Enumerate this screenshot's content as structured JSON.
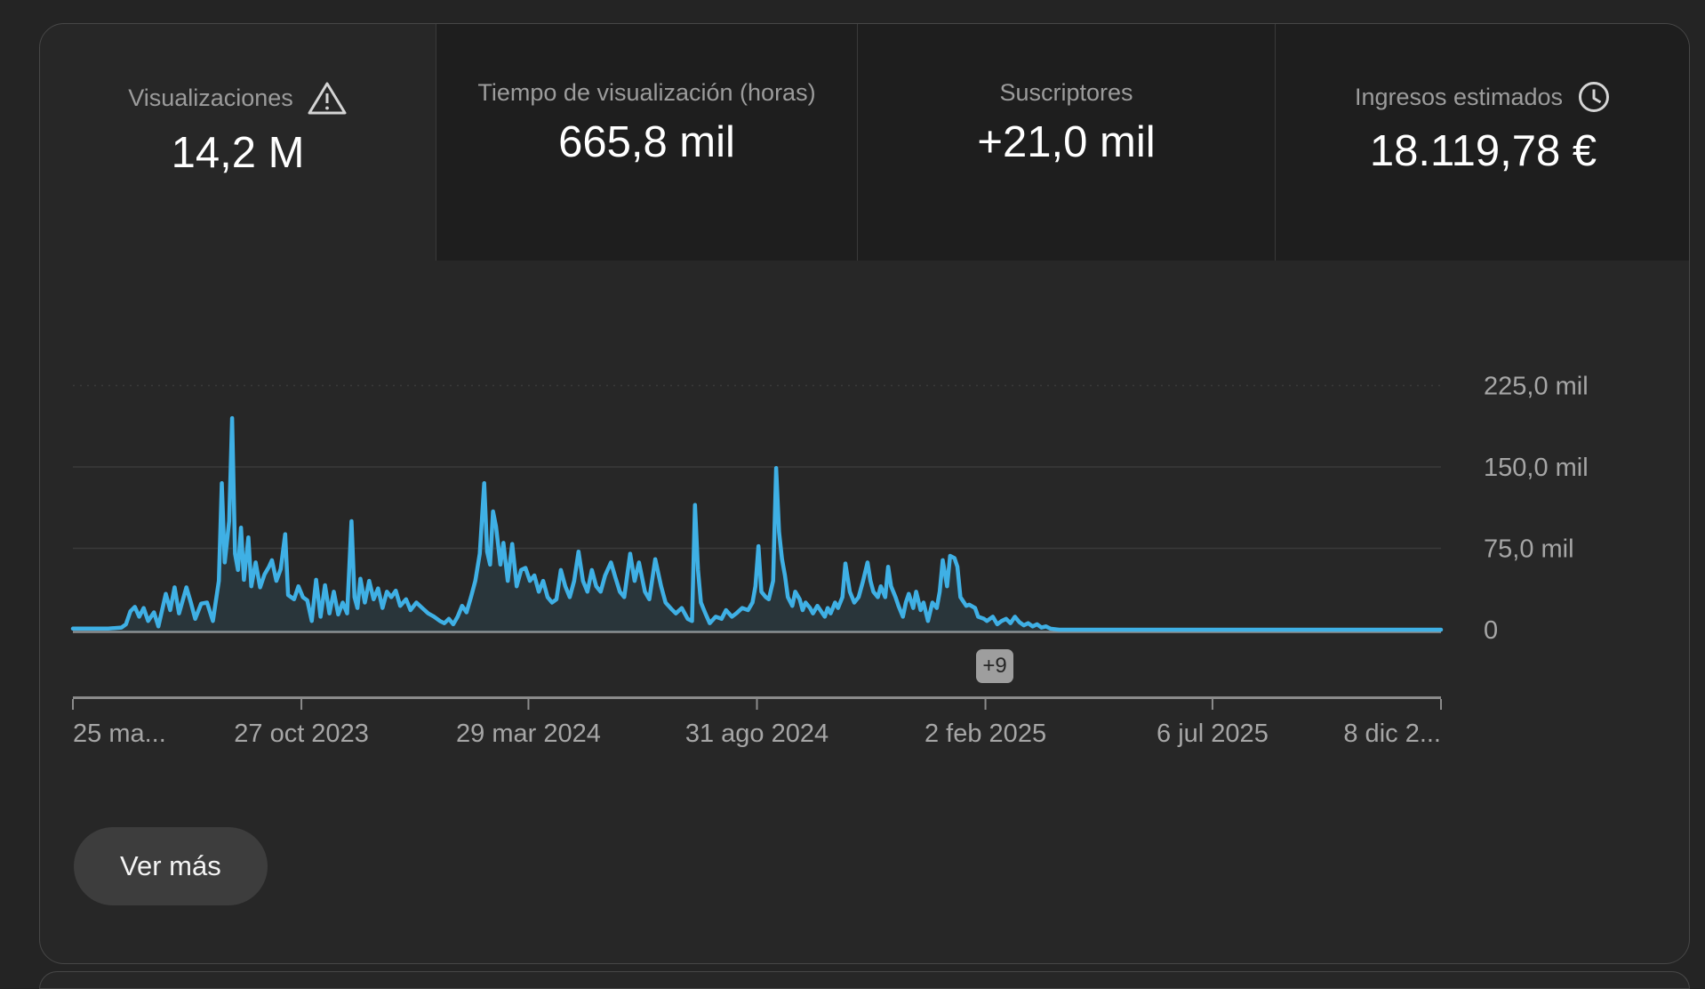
{
  "panel": {
    "see_more_label": "Ver más",
    "overflow_badge": "+9"
  },
  "metrics": [
    {
      "label": "Visualizaciones",
      "value": "14,2 M",
      "icon": "warning",
      "selected": true
    },
    {
      "label": "Tiempo de visualización (horas)",
      "value": "665,8 mil",
      "icon": "",
      "selected": false
    },
    {
      "label": "Suscriptores",
      "value": "+21,0 mil",
      "icon": "",
      "selected": false
    },
    {
      "label": "Ingresos estimados",
      "value": "18.119,78 €",
      "icon": "clock",
      "selected": false
    }
  ],
  "colors": {
    "accent_line": "#3fb0e5",
    "area_fill": "rgba(63,176,229,0.10)",
    "gridline": "#3a3a3a",
    "axis": "#8b8b8b",
    "zero_line": "#8f8f8f",
    "axis_text": "#a6a6a6",
    "page_bg": "#242424",
    "card_bg": "#272727",
    "tab_bg": "#1e1e1e"
  },
  "chart_data": {
    "type": "area",
    "title": "Visualizaciones por día",
    "xlabel": "",
    "ylabel": "Visualizaciones",
    "values_unit": "thousands of views (mil)",
    "grid": true,
    "legend_position": "none",
    "x_axis_start_day": 0,
    "x_axis_end_day": 928,
    "x_ticks": [
      {
        "day": 0,
        "label": "25 ma..."
      },
      {
        "day": 155,
        "label": "27 oct 2023"
      },
      {
        "day": 309,
        "label": "29 mar 2024"
      },
      {
        "day": 464,
        "label": "31 ago 2024"
      },
      {
        "day": 619,
        "label": "2 feb 2025"
      },
      {
        "day": 773,
        "label": "6 jul 2025"
      },
      {
        "day": 928,
        "label": "8 dic 2..."
      }
    ],
    "y_ticks": [
      {
        "value": 225,
        "label": "225,0 mil",
        "dashed": true
      },
      {
        "value": 150,
        "label": "150,0 mil",
        "dashed": false
      },
      {
        "value": 75,
        "label": "75,0 mil",
        "dashed": false
      },
      {
        "value": 0,
        "label": "0",
        "dashed": false
      }
    ],
    "ylim": [
      0,
      250
    ],
    "series": [
      {
        "name": "Visualizaciones",
        "points": [
          [
            0,
            1
          ],
          [
            11,
            1
          ],
          [
            24,
            1
          ],
          [
            33,
            2
          ],
          [
            36,
            5
          ],
          [
            39,
            17
          ],
          [
            42,
            21
          ],
          [
            45,
            12
          ],
          [
            48,
            20
          ],
          [
            51,
            8
          ],
          [
            55,
            16
          ],
          [
            58,
            3
          ],
          [
            63,
            33
          ],
          [
            66,
            18
          ],
          [
            69,
            39
          ],
          [
            72,
            15
          ],
          [
            77,
            39
          ],
          [
            80,
            25
          ],
          [
            83,
            10
          ],
          [
            87,
            24
          ],
          [
            91,
            25
          ],
          [
            95,
            8
          ],
          [
            99,
            45
          ],
          [
            101,
            135
          ],
          [
            103,
            62
          ],
          [
            106,
            100
          ],
          [
            108,
            195
          ],
          [
            110,
            70
          ],
          [
            112,
            55
          ],
          [
            114,
            94
          ],
          [
            116,
            46
          ],
          [
            119,
            85
          ],
          [
            121,
            40
          ],
          [
            124,
            62
          ],
          [
            127,
            39
          ],
          [
            130,
            51
          ],
          [
            133,
            58
          ],
          [
            135,
            64
          ],
          [
            138,
            45
          ],
          [
            141,
            56
          ],
          [
            144,
            88
          ],
          [
            146,
            32
          ],
          [
            150,
            28
          ],
          [
            153,
            40
          ],
          [
            156,
            30
          ],
          [
            159,
            27
          ],
          [
            162,
            8
          ],
          [
            165,
            46
          ],
          [
            168,
            12
          ],
          [
            171,
            41
          ],
          [
            174,
            15
          ],
          [
            177,
            35
          ],
          [
            180,
            14
          ],
          [
            183,
            25
          ],
          [
            186,
            15
          ],
          [
            189,
            100
          ],
          [
            191,
            30
          ],
          [
            193,
            20
          ],
          [
            195,
            47
          ],
          [
            198,
            25
          ],
          [
            201,
            45
          ],
          [
            204,
            28
          ],
          [
            207,
            38
          ],
          [
            210,
            20
          ],
          [
            213,
            35
          ],
          [
            216,
            30
          ],
          [
            219,
            36
          ],
          [
            222,
            22
          ],
          [
            226,
            28
          ],
          [
            229,
            18
          ],
          [
            233,
            25
          ],
          [
            237,
            20
          ],
          [
            241,
            15
          ],
          [
            245,
            12
          ],
          [
            249,
            8
          ],
          [
            252,
            6
          ],
          [
            255,
            10
          ],
          [
            258,
            5
          ],
          [
            261,
            12
          ],
          [
            264,
            22
          ],
          [
            267,
            16
          ],
          [
            270,
            30
          ],
          [
            273,
            45
          ],
          [
            276,
            70
          ],
          [
            279,
            135
          ],
          [
            281,
            72
          ],
          [
            283,
            60
          ],
          [
            285,
            109
          ],
          [
            287,
            95
          ],
          [
            290,
            60
          ],
          [
            292,
            80
          ],
          [
            295,
            45
          ],
          [
            298,
            79
          ],
          [
            301,
            40
          ],
          [
            304,
            55
          ],
          [
            307,
            57
          ],
          [
            310,
            45
          ],
          [
            313,
            50
          ],
          [
            316,
            35
          ],
          [
            319,
            45
          ],
          [
            322,
            30
          ],
          [
            325,
            25
          ],
          [
            328,
            28
          ],
          [
            331,
            55
          ],
          [
            334,
            40
          ],
          [
            337,
            30
          ],
          [
            340,
            45
          ],
          [
            343,
            72
          ],
          [
            346,
            45
          ],
          [
            349,
            35
          ],
          [
            352,
            55
          ],
          [
            355,
            40
          ],
          [
            358,
            35
          ],
          [
            361,
            50
          ],
          [
            365,
            62
          ],
          [
            368,
            48
          ],
          [
            371,
            35
          ],
          [
            374,
            30
          ],
          [
            378,
            70
          ],
          [
            381,
            45
          ],
          [
            384,
            62
          ],
          [
            388,
            35
          ],
          [
            391,
            28
          ],
          [
            395,
            65
          ],
          [
            399,
            40
          ],
          [
            402,
            25
          ],
          [
            406,
            19
          ],
          [
            409,
            15
          ],
          [
            413,
            20
          ],
          [
            417,
            10
          ],
          [
            420,
            8
          ],
          [
            422,
            115
          ],
          [
            424,
            55
          ],
          [
            426,
            25
          ],
          [
            429,
            15
          ],
          [
            432,
            6
          ],
          [
            436,
            12
          ],
          [
            440,
            10
          ],
          [
            443,
            18
          ],
          [
            447,
            12
          ],
          [
            450,
            15
          ],
          [
            454,
            20
          ],
          [
            458,
            18
          ],
          [
            461,
            25
          ],
          [
            463,
            40
          ],
          [
            465,
            77
          ],
          [
            467,
            35
          ],
          [
            470,
            30
          ],
          [
            472,
            28
          ],
          [
            475,
            45
          ],
          [
            477,
            149
          ],
          [
            479,
            90
          ],
          [
            481,
            65
          ],
          [
            483,
            50
          ],
          [
            485,
            30
          ],
          [
            488,
            22
          ],
          [
            490,
            35
          ],
          [
            493,
            28
          ],
          [
            495,
            18
          ],
          [
            497,
            25
          ],
          [
            500,
            20
          ],
          [
            502,
            15
          ],
          [
            505,
            22
          ],
          [
            507,
            18
          ],
          [
            510,
            12
          ],
          [
            512,
            20
          ],
          [
            514,
            15
          ],
          [
            517,
            25
          ],
          [
            519,
            20
          ],
          [
            522,
            30
          ],
          [
            524,
            61
          ],
          [
            527,
            35
          ],
          [
            530,
            25
          ],
          [
            533,
            30
          ],
          [
            536,
            45
          ],
          [
            539,
            62
          ],
          [
            541,
            45
          ],
          [
            543,
            35
          ],
          [
            546,
            30
          ],
          [
            548,
            40
          ],
          [
            551,
            30
          ],
          [
            553,
            58
          ],
          [
            555,
            40
          ],
          [
            558,
            30
          ],
          [
            560,
            22
          ],
          [
            563,
            12
          ],
          [
            565,
            25
          ],
          [
            567,
            33
          ],
          [
            570,
            20
          ],
          [
            572,
            35
          ],
          [
            575,
            18
          ],
          [
            577,
            25
          ],
          [
            580,
            8
          ],
          [
            583,
            25
          ],
          [
            586,
            20
          ],
          [
            588,
            35
          ],
          [
            590,
            64
          ],
          [
            593,
            40
          ],
          [
            595,
            68
          ],
          [
            598,
            66
          ],
          [
            600,
            58
          ],
          [
            602,
            30
          ],
          [
            606,
            22
          ],
          [
            608,
            23
          ],
          [
            612,
            20
          ],
          [
            614,
            12
          ],
          [
            618,
            10
          ],
          [
            620,
            8
          ],
          [
            624,
            12
          ],
          [
            627,
            5
          ],
          [
            630,
            8
          ],
          [
            633,
            10
          ],
          [
            636,
            6
          ],
          [
            639,
            12
          ],
          [
            642,
            7
          ],
          [
            645,
            4
          ],
          [
            648,
            6
          ],
          [
            651,
            3
          ],
          [
            654,
            5
          ],
          [
            657,
            2
          ],
          [
            660,
            3
          ],
          [
            663,
            1
          ],
          [
            669,
            0
          ],
          [
            928,
            0
          ]
        ]
      }
    ]
  }
}
